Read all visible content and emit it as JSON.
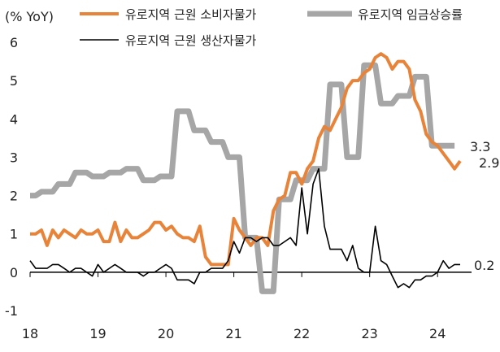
{
  "chart_data": {
    "type": "line",
    "unit_label": "(% YoY)",
    "xlabel": "",
    "ylabel": "",
    "ylim": [
      -1,
      6
    ],
    "xlim": [
      2018.0,
      2024.5
    ],
    "yticks": [
      "-1",
      "0",
      "1",
      "2",
      "3",
      "4",
      "5",
      "6"
    ],
    "xticks": [
      {
        "x": 2018,
        "label": "18"
      },
      {
        "x": 2019,
        "label": "19"
      },
      {
        "x": 2020,
        "label": "20"
      },
      {
        "x": 2021,
        "label": "21"
      },
      {
        "x": 2022,
        "label": "22"
      },
      {
        "x": 2023,
        "label": "23"
      },
      {
        "x": 2024,
        "label": "24"
      }
    ],
    "grid": false,
    "legend_position": "top",
    "series": [
      {
        "name": "유로지역 근원 소비자물가",
        "color": "#E8843A",
        "line_width": 4,
        "end_label": "2.9",
        "points": [
          [
            2018.0,
            1.0
          ],
          [
            2018.083,
            1.0
          ],
          [
            2018.167,
            1.1
          ],
          [
            2018.25,
            0.7
          ],
          [
            2018.333,
            1.1
          ],
          [
            2018.417,
            0.9
          ],
          [
            2018.5,
            1.1
          ],
          [
            2018.583,
            1.0
          ],
          [
            2018.667,
            0.9
          ],
          [
            2018.75,
            1.1
          ],
          [
            2018.833,
            1.0
          ],
          [
            2018.917,
            1.0
          ],
          [
            2019.0,
            1.1
          ],
          [
            2019.083,
            0.8
          ],
          [
            2019.167,
            0.8
          ],
          [
            2019.25,
            1.3
          ],
          [
            2019.333,
            0.8
          ],
          [
            2019.417,
            1.1
          ],
          [
            2019.5,
            0.9
          ],
          [
            2019.583,
            0.9
          ],
          [
            2019.667,
            1.0
          ],
          [
            2019.75,
            1.1
          ],
          [
            2019.833,
            1.3
          ],
          [
            2019.917,
            1.3
          ],
          [
            2020.0,
            1.1
          ],
          [
            2020.083,
            1.2
          ],
          [
            2020.167,
            1.0
          ],
          [
            2020.25,
            0.9
          ],
          [
            2020.333,
            0.9
          ],
          [
            2020.417,
            0.8
          ],
          [
            2020.5,
            1.2
          ],
          [
            2020.583,
            0.4
          ],
          [
            2020.667,
            0.2
          ],
          [
            2020.75,
            0.2
          ],
          [
            2020.833,
            0.2
          ],
          [
            2020.917,
            0.2
          ],
          [
            2021.0,
            1.4
          ],
          [
            2021.083,
            1.1
          ],
          [
            2021.167,
            0.9
          ],
          [
            2021.25,
            0.7
          ],
          [
            2021.333,
            0.9
          ],
          [
            2021.417,
            0.9
          ],
          [
            2021.5,
            0.7
          ],
          [
            2021.583,
            1.6
          ],
          [
            2021.667,
            1.9
          ],
          [
            2021.75,
            2.0
          ],
          [
            2021.833,
            2.6
          ],
          [
            2021.917,
            2.6
          ],
          [
            2022.0,
            2.3
          ],
          [
            2022.083,
            2.7
          ],
          [
            2022.167,
            2.9
          ],
          [
            2022.25,
            3.5
          ],
          [
            2022.333,
            3.8
          ],
          [
            2022.417,
            3.7
          ],
          [
            2022.5,
            4.0
          ],
          [
            2022.583,
            4.3
          ],
          [
            2022.667,
            4.8
          ],
          [
            2022.75,
            5.0
          ],
          [
            2022.833,
            5.0
          ],
          [
            2022.917,
            5.2
          ],
          [
            2023.0,
            5.3
          ],
          [
            2023.083,
            5.6
          ],
          [
            2023.167,
            5.7
          ],
          [
            2023.25,
            5.6
          ],
          [
            2023.333,
            5.3
          ],
          [
            2023.417,
            5.5
          ],
          [
            2023.5,
            5.5
          ],
          [
            2023.583,
            5.3
          ],
          [
            2023.667,
            4.5
          ],
          [
            2023.75,
            4.2
          ],
          [
            2023.833,
            3.6
          ],
          [
            2023.917,
            3.4
          ],
          [
            2024.0,
            3.3
          ],
          [
            2024.083,
            3.1
          ],
          [
            2024.167,
            2.9
          ],
          [
            2024.25,
            2.7
          ],
          [
            2024.333,
            2.9
          ]
        ]
      },
      {
        "name": "유로지역 임금상승률",
        "color": "#A6A6A6",
        "line_width": 7,
        "end_label": "3.3",
        "points": [
          [
            2018.0,
            2.0
          ],
          [
            2018.083,
            2.0
          ],
          [
            2018.167,
            2.1
          ],
          [
            2018.333,
            2.1
          ],
          [
            2018.417,
            2.3
          ],
          [
            2018.583,
            2.3
          ],
          [
            2018.667,
            2.6
          ],
          [
            2018.833,
            2.6
          ],
          [
            2018.917,
            2.5
          ],
          [
            2019.083,
            2.5
          ],
          [
            2019.167,
            2.6
          ],
          [
            2019.333,
            2.6
          ],
          [
            2019.417,
            2.7
          ],
          [
            2019.583,
            2.7
          ],
          [
            2019.667,
            2.4
          ],
          [
            2019.833,
            2.4
          ],
          [
            2019.917,
            2.5
          ],
          [
            2020.083,
            2.5
          ],
          [
            2020.167,
            4.2
          ],
          [
            2020.333,
            4.2
          ],
          [
            2020.417,
            3.7
          ],
          [
            2020.583,
            3.7
          ],
          [
            2020.667,
            3.4
          ],
          [
            2020.833,
            3.4
          ],
          [
            2020.917,
            3.0
          ],
          [
            2021.083,
            3.0
          ],
          [
            2021.167,
            0.9
          ],
          [
            2021.333,
            0.9
          ],
          [
            2021.417,
            -0.5
          ],
          [
            2021.583,
            -0.5
          ],
          [
            2021.667,
            1.9
          ],
          [
            2021.833,
            1.9
          ],
          [
            2021.917,
            2.4
          ],
          [
            2022.083,
            2.4
          ],
          [
            2022.167,
            2.7
          ],
          [
            2022.333,
            2.7
          ],
          [
            2022.417,
            4.9
          ],
          [
            2022.583,
            4.9
          ],
          [
            2022.667,
            3.0
          ],
          [
            2022.833,
            3.0
          ],
          [
            2022.917,
            5.4
          ],
          [
            2023.083,
            5.4
          ],
          [
            2023.167,
            4.4
          ],
          [
            2023.333,
            4.4
          ],
          [
            2023.417,
            4.6
          ],
          [
            2023.583,
            4.6
          ],
          [
            2023.667,
            5.1
          ],
          [
            2023.833,
            5.1
          ],
          [
            2023.917,
            3.3
          ],
          [
            2024.25,
            3.3
          ]
        ]
      },
      {
        "name": "유로지역 근원 생산자물가",
        "color": "#000000",
        "line_width": 1.6,
        "end_label": "0.2",
        "points": [
          [
            2018.0,
            0.3
          ],
          [
            2018.083,
            0.1
          ],
          [
            2018.167,
            0.1
          ],
          [
            2018.25,
            0.1
          ],
          [
            2018.333,
            0.2
          ],
          [
            2018.417,
            0.2
          ],
          [
            2018.5,
            0.1
          ],
          [
            2018.583,
            0.0
          ],
          [
            2018.667,
            0.1
          ],
          [
            2018.75,
            0.1
          ],
          [
            2018.833,
            0.0
          ],
          [
            2018.917,
            -0.1
          ],
          [
            2019.0,
            0.2
          ],
          [
            2019.083,
            0.0
          ],
          [
            2019.167,
            0.1
          ],
          [
            2019.25,
            0.2
          ],
          [
            2019.333,
            0.1
          ],
          [
            2019.417,
            0.0
          ],
          [
            2019.5,
            0.0
          ],
          [
            2019.583,
            0.0
          ],
          [
            2019.667,
            -0.1
          ],
          [
            2019.75,
            0.0
          ],
          [
            2019.833,
            0.0
          ],
          [
            2019.917,
            0.1
          ],
          [
            2020.0,
            0.2
          ],
          [
            2020.083,
            0.1
          ],
          [
            2020.167,
            -0.2
          ],
          [
            2020.25,
            -0.2
          ],
          [
            2020.333,
            -0.2
          ],
          [
            2020.417,
            -0.3
          ],
          [
            2020.5,
            0.0
          ],
          [
            2020.583,
            0.0
          ],
          [
            2020.667,
            0.1
          ],
          [
            2020.75,
            0.1
          ],
          [
            2020.833,
            0.1
          ],
          [
            2020.917,
            0.3
          ],
          [
            2021.0,
            0.8
          ],
          [
            2021.083,
            0.5
          ],
          [
            2021.167,
            0.9
          ],
          [
            2021.25,
            0.9
          ],
          [
            2021.333,
            0.8
          ],
          [
            2021.417,
            0.9
          ],
          [
            2021.5,
            0.9
          ],
          [
            2021.583,
            0.7
          ],
          [
            2021.667,
            0.7
          ],
          [
            2021.75,
            0.8
          ],
          [
            2021.833,
            0.9
          ],
          [
            2021.917,
            0.7
          ],
          [
            2022.0,
            2.2
          ],
          [
            2022.083,
            1.0
          ],
          [
            2022.167,
            2.3
          ],
          [
            2022.25,
            2.7
          ],
          [
            2022.333,
            1.2
          ],
          [
            2022.417,
            0.6
          ],
          [
            2022.5,
            0.6
          ],
          [
            2022.583,
            0.6
          ],
          [
            2022.667,
            0.3
          ],
          [
            2022.75,
            0.7
          ],
          [
            2022.833,
            0.1
          ],
          [
            2022.917,
            0.0
          ],
          [
            2023.0,
            0.0
          ],
          [
            2023.083,
            1.2
          ],
          [
            2023.167,
            0.3
          ],
          [
            2023.25,
            0.2
          ],
          [
            2023.333,
            -0.1
          ],
          [
            2023.417,
            -0.4
          ],
          [
            2023.5,
            -0.3
          ],
          [
            2023.583,
            -0.4
          ],
          [
            2023.667,
            -0.2
          ],
          [
            2023.75,
            -0.2
          ],
          [
            2023.833,
            -0.1
          ],
          [
            2023.917,
            -0.1
          ],
          [
            2024.0,
            0.0
          ],
          [
            2024.083,
            0.3
          ],
          [
            2024.167,
            0.1
          ],
          [
            2024.25,
            0.2
          ],
          [
            2024.333,
            0.2
          ]
        ]
      }
    ]
  }
}
